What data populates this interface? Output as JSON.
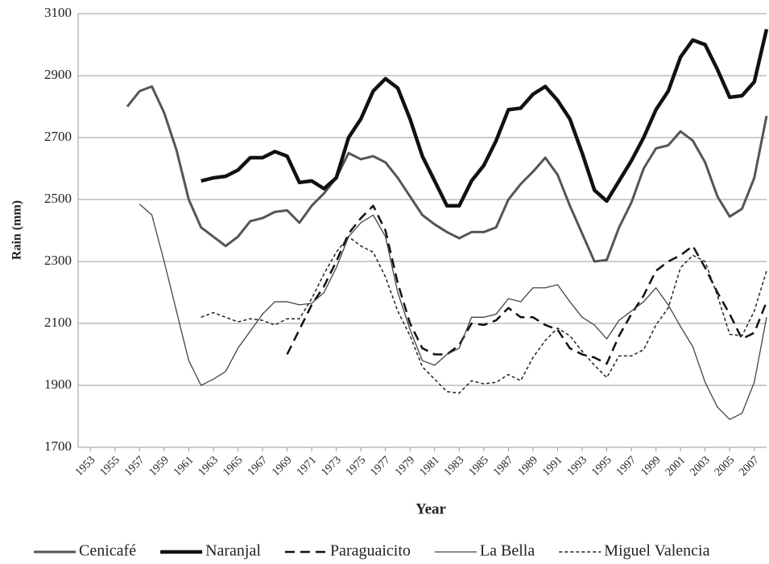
{
  "chart_data": {
    "type": "line",
    "x_label": "Year",
    "y_label": "Rain (mm)",
    "x": [
      1953,
      1954,
      1955,
      1956,
      1957,
      1958,
      1959,
      1960,
      1961,
      1962,
      1963,
      1964,
      1965,
      1966,
      1967,
      1968,
      1969,
      1970,
      1971,
      1972,
      1973,
      1974,
      1975,
      1976,
      1977,
      1978,
      1979,
      1980,
      1981,
      1982,
      1983,
      1984,
      1985,
      1986,
      1987,
      1988,
      1989,
      1990,
      1991,
      1992,
      1993,
      1994,
      1995,
      1996,
      1997,
      1998,
      1999,
      2000,
      2001,
      2002,
      2003,
      2004,
      2005,
      2006,
      2007,
      2008
    ],
    "xlim": [
      1952,
      2008
    ],
    "xticks": [
      1953,
      1955,
      1957,
      1959,
      1961,
      1963,
      1965,
      1967,
      1969,
      1971,
      1973,
      1975,
      1977,
      1979,
      1981,
      1983,
      1985,
      1987,
      1989,
      1991,
      1993,
      1995,
      1997,
      1999,
      2001,
      2003,
      2005,
      2007
    ],
    "ylim": [
      1700,
      3100
    ],
    "yticks": [
      1700,
      1900,
      2100,
      2300,
      2500,
      2700,
      2900,
      3100
    ],
    "grid": true,
    "legend": "bottom",
    "series": [
      {
        "name": "Cenicafé",
        "color": "#555555",
        "width": 3,
        "dash": "solid",
        "values": [
          null,
          null,
          null,
          2800,
          2850,
          2865,
          2780,
          2660,
          2500,
          2410,
          2380,
          2350,
          2380,
          2430,
          2440,
          2460,
          2465,
          2425,
          2480,
          2520,
          2570,
          2650,
          2630,
          2640,
          2620,
          2570,
          2510,
          2450,
          2420,
          2395,
          2375,
          2395,
          2395,
          2410,
          2500,
          2550,
          2590,
          2635,
          2580,
          2480,
          2390,
          2300,
          2305,
          2410,
          2490,
          2600,
          2665,
          2675,
          2720,
          2690,
          2620,
          2510,
          2445,
          2470,
          2570,
          2770
        ]
      },
      {
        "name": "Naranjal",
        "color": "#111111",
        "width": 4.5,
        "dash": "solid",
        "values": [
          null,
          null,
          null,
          null,
          null,
          null,
          null,
          null,
          null,
          2560,
          2570,
          2575,
          2595,
          2635,
          2635,
          2655,
          2640,
          2555,
          2560,
          2535,
          2570,
          2700,
          2760,
          2850,
          2890,
          2860,
          2760,
          2640,
          2560,
          2480,
          2480,
          2560,
          2610,
          2690,
          2790,
          2795,
          2840,
          2865,
          2820,
          2760,
          2650,
          2530,
          2495,
          2560,
          2625,
          2700,
          2790,
          2850,
          2960,
          3015,
          3000,
          2920,
          2830,
          2835,
          2880,
          3050
        ]
      },
      {
        "name": "Paraguaicito",
        "color": "#111111",
        "width": 2.5,
        "dash": "dashed",
        "values": [
          null,
          null,
          null,
          null,
          null,
          null,
          null,
          null,
          null,
          null,
          null,
          null,
          null,
          null,
          null,
          null,
          2000,
          2080,
          2160,
          2220,
          2300,
          2390,
          2440,
          2480,
          2400,
          2230,
          2100,
          2020,
          2000,
          2000,
          2030,
          2100,
          2095,
          2110,
          2150,
          2120,
          2120,
          2095,
          2080,
          2020,
          2000,
          1990,
          1970,
          2060,
          2130,
          2190,
          2270,
          2300,
          2320,
          2350,
          2280,
          2200,
          2130,
          2050,
          2070,
          2170
        ]
      },
      {
        "name": "La Bella",
        "color": "#444444",
        "width": 1.3,
        "dash": "solid",
        "values": [
          null,
          null,
          null,
          null,
          2485,
          2450,
          2300,
          2140,
          1980,
          1900,
          1920,
          1945,
          2020,
          2075,
          2130,
          2170,
          2170,
          2160,
          2165,
          2200,
          2280,
          2380,
          2425,
          2450,
          2380,
          2200,
          2080,
          1980,
          1965,
          2000,
          2020,
          2120,
          2120,
          2130,
          2180,
          2170,
          2215,
          2215,
          2225,
          2170,
          2120,
          2095,
          2050,
          2110,
          2140,
          2170,
          2215,
          2160,
          2090,
          2025,
          1910,
          1830,
          1790,
          1810,
          1910,
          2120
        ]
      },
      {
        "name": "Miguel Valencia",
        "color": "#222222",
        "width": 1.5,
        "dash": "dotted",
        "values": [
          null,
          null,
          null,
          null,
          null,
          null,
          null,
          null,
          null,
          2120,
          2135,
          2120,
          2105,
          2115,
          2110,
          2095,
          2115,
          2115,
          2180,
          2260,
          2330,
          2380,
          2350,
          2330,
          2250,
          2140,
          2060,
          1960,
          1920,
          1880,
          1875,
          1915,
          1905,
          1910,
          1935,
          1915,
          1990,
          2045,
          2085,
          2060,
          2010,
          1965,
          1925,
          1995,
          1995,
          2015,
          2095,
          2150,
          2280,
          2320,
          2300,
          2190,
          2065,
          2060,
          2140,
          2270
        ]
      }
    ]
  }
}
